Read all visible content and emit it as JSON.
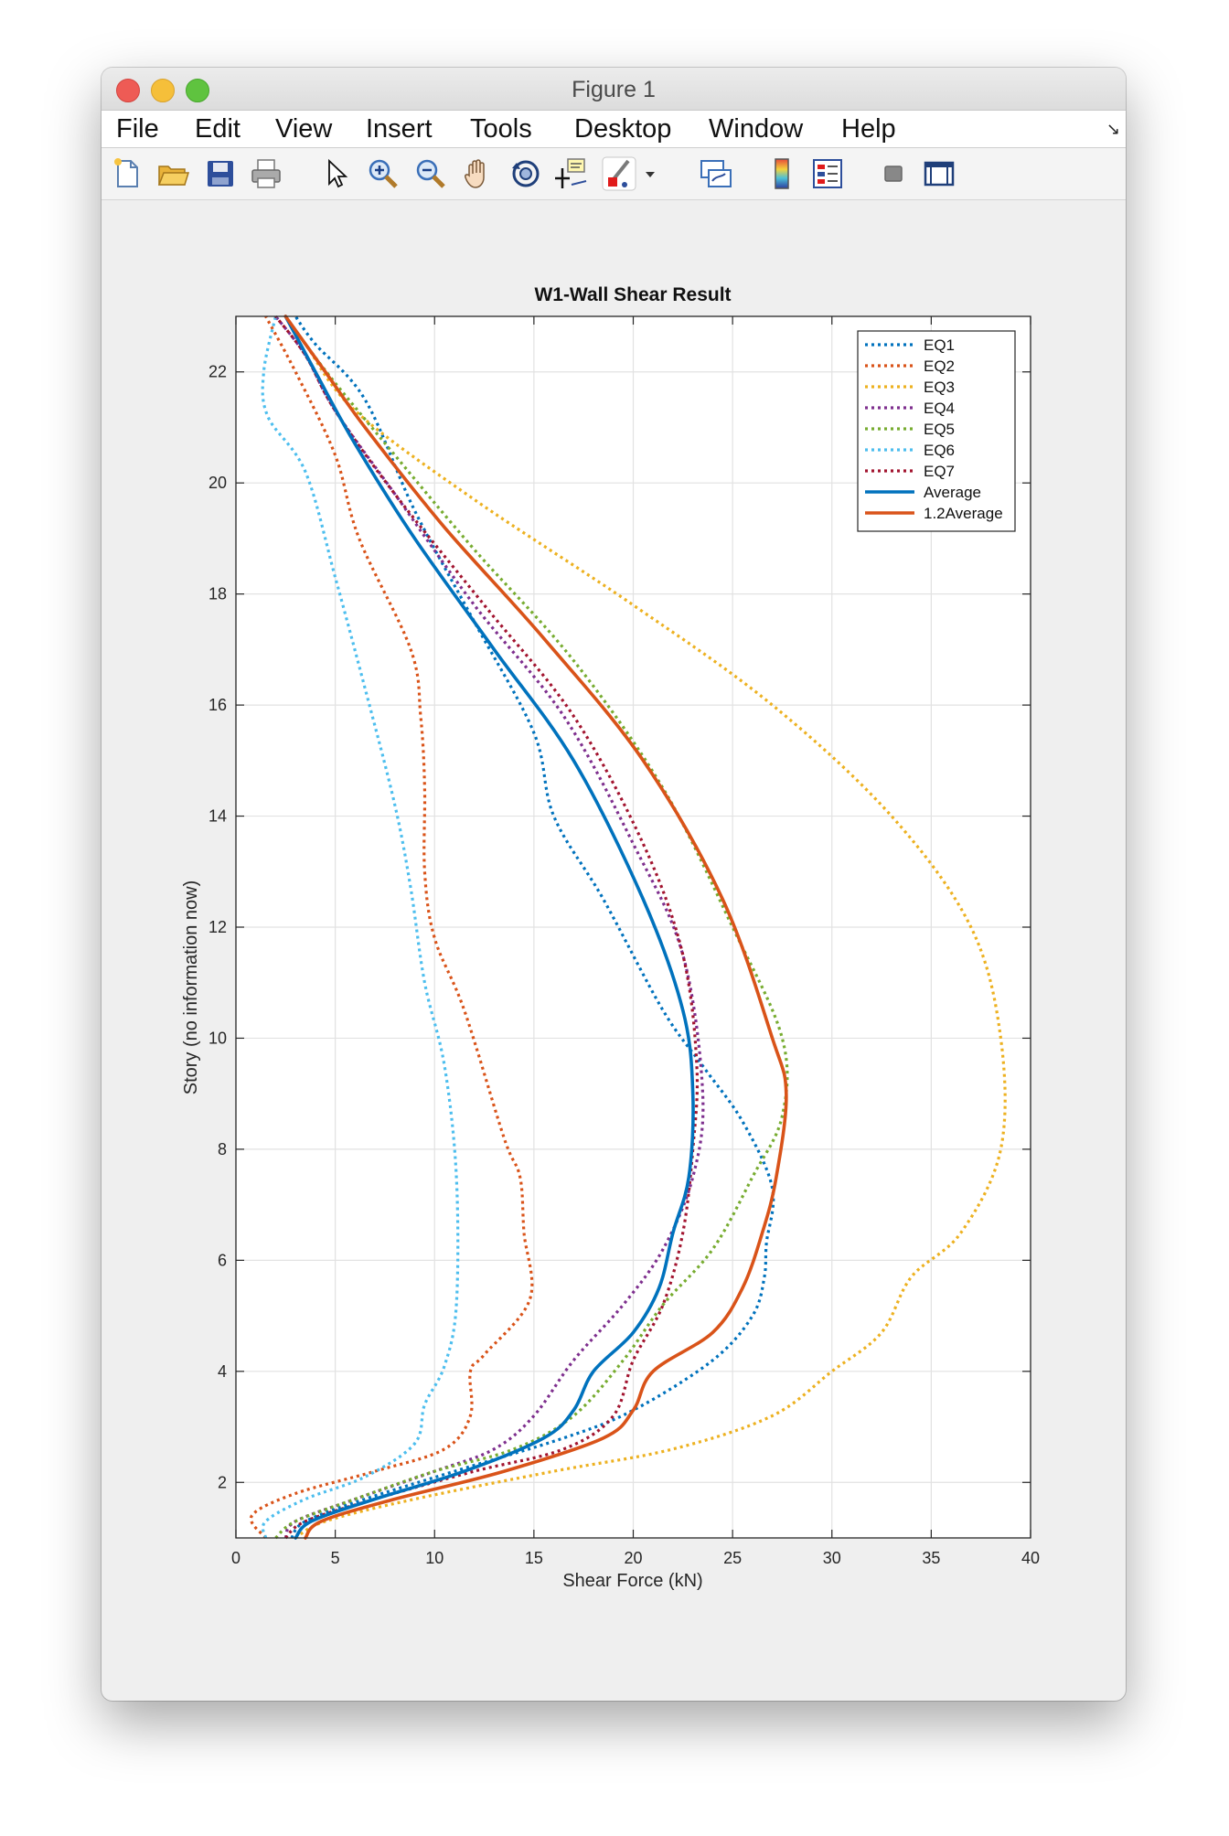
{
  "window": {
    "title": "Figure 1"
  },
  "menu": [
    "File",
    "Edit",
    "View",
    "Insert",
    "Tools",
    "Desktop",
    "Window",
    "Help"
  ],
  "toolbar": [
    "new-figure-icon",
    "open-file-icon",
    "save-icon",
    "print-icon",
    "pointer-icon",
    "zoom-in-icon",
    "zoom-out-icon",
    "pan-hand-icon",
    "rotate-3d-icon",
    "data-cursor-icon",
    "brush-icon",
    "brush-dropdown-icon",
    "link-plot-icon",
    "colorbar-icon",
    "legend-icon",
    "hide-plot-tools-icon",
    "show-plot-tools-icon"
  ],
  "chart_data": {
    "type": "line",
    "title": "W1-Wall Shear Result",
    "xlabel": "Shear Force (kN)",
    "ylabel": "Story (no information now)",
    "xlim": [
      0,
      40
    ],
    "ylim": [
      1,
      23
    ],
    "xticks": [
      0,
      5,
      10,
      15,
      20,
      25,
      30,
      35,
      40
    ],
    "yticks": [
      2,
      4,
      6,
      8,
      10,
      12,
      14,
      16,
      18,
      20,
      22
    ],
    "grid": true,
    "legend_position": "top-right",
    "series": [
      {
        "name": "EQ1",
        "color": "#0072BD",
        "style": "dotted",
        "x": [
          2.8,
          3.5,
          6.5,
          11,
          16.5,
          20,
          24,
          26,
          26.6,
          26.7,
          27,
          25.5,
          23.5,
          21.5,
          18.5,
          16,
          15,
          12,
          9,
          6.5,
          4,
          3
        ],
        "y": [
          1,
          1.3,
          1.7,
          2.2,
          2.8,
          3.3,
          4.2,
          5,
          5.7,
          6.3,
          7.3,
          8.5,
          9.5,
          10.5,
          12.5,
          14,
          15.5,
          17.5,
          19.5,
          21.5,
          22.5,
          23
        ]
      },
      {
        "name": "EQ2",
        "color": "#D95319",
        "style": "dotted",
        "x": [
          1.5,
          0.8,
          3,
          7,
          10.5,
          11.8,
          11.8,
          12.5,
          14.8,
          14.5,
          14.3,
          13.5,
          11.5,
          10,
          9.5,
          9.5,
          9.3,
          8.8,
          6.2,
          5,
          3,
          1.5
        ],
        "y": [
          1,
          1.4,
          1.8,
          2.2,
          2.6,
          3.2,
          4,
          4.3,
          5.3,
          6.5,
          7.5,
          8.2,
          10.5,
          11.8,
          13,
          14.5,
          15.8,
          17,
          19,
          20.5,
          22,
          23
        ]
      },
      {
        "name": "EQ3",
        "color": "#EDB120",
        "style": "dotted",
        "x": [
          3,
          4.5,
          9,
          16,
          22,
          27,
          30,
          32.5,
          34,
          36.5,
          38.5,
          38.5,
          37,
          33,
          27,
          20,
          12,
          6,
          3.5,
          2.5
        ],
        "y": [
          1,
          1.3,
          1.7,
          2.2,
          2.6,
          3.2,
          4,
          4.7,
          5.7,
          6.5,
          8,
          10,
          12,
          14,
          16,
          17.8,
          19.7,
          21.3,
          22.5,
          23
        ]
      },
      {
        "name": "EQ4",
        "color": "#7E2F8E",
        "style": "dotted",
        "x": [
          2.5,
          3,
          6,
          10,
          13,
          15,
          17,
          19.5,
          21.5,
          23,
          23.5,
          22.5,
          20,
          16.5,
          12,
          8,
          5,
          3.5,
          2
        ],
        "y": [
          1,
          1.3,
          1.7,
          2.2,
          2.6,
          3.2,
          4.2,
          5.2,
          6.2,
          7.5,
          9,
          11.5,
          13.5,
          15.8,
          17.8,
          19.8,
          21.3,
          22.3,
          23
        ]
      },
      {
        "name": "EQ5",
        "color": "#77AC30",
        "style": "dotted",
        "x": [
          2,
          3,
          6,
          10,
          14,
          17,
          19.5,
          21.5,
          24,
          26,
          27.5,
          27.5,
          25,
          21.5,
          17,
          12,
          8,
          5,
          3.5,
          2.5
        ],
        "y": [
          1,
          1.3,
          1.7,
          2.2,
          2.6,
          3.2,
          4.2,
          5.2,
          6.2,
          7.5,
          8.6,
          10,
          12,
          14.5,
          16.8,
          18.8,
          20.5,
          21.8,
          22.5,
          23
        ]
      },
      {
        "name": "EQ6",
        "color": "#4DBEEE",
        "style": "dotted",
        "x": [
          1.5,
          1.5,
          3.5,
          6.5,
          9,
          9.5,
          10.5,
          11.1,
          11.1,
          10.5,
          9.5,
          8.8,
          8,
          6.5,
          5,
          3.5,
          1.6,
          1.4,
          2
        ],
        "y": [
          1,
          1.3,
          1.7,
          2.1,
          2.7,
          3.4,
          4.1,
          5.2,
          7.5,
          9.5,
          11,
          12.7,
          14.2,
          16.3,
          18.3,
          20.2,
          21.2,
          22,
          23
        ]
      },
      {
        "name": "EQ7",
        "color": "#A2142F",
        "style": "dotted",
        "x": [
          2.5,
          3.5,
          7,
          12,
          16.5,
          19,
          20,
          21.5,
          22.5,
          23,
          23.2,
          22.5,
          20.5,
          17,
          12.5,
          8,
          5,
          3.5,
          2
        ],
        "y": [
          1,
          1.3,
          1.7,
          2.2,
          2.6,
          3.2,
          4.2,
          5.2,
          6.5,
          8,
          9.5,
          11.5,
          13.5,
          15.8,
          17.8,
          19.8,
          21.3,
          22.3,
          23
        ]
      },
      {
        "name": "Average",
        "color": "#0072BD",
        "style": "solid",
        "x": [
          3,
          3.8,
          7,
          11.5,
          15.5,
          17,
          18,
          20,
          21.3,
          22,
          22.8,
          23,
          22.5,
          20.5,
          17,
          13,
          9,
          6,
          4,
          2.5
        ],
        "y": [
          1,
          1.3,
          1.7,
          2.2,
          2.8,
          3.3,
          4,
          4.7,
          5.5,
          6.5,
          7.5,
          9,
          10.5,
          12.5,
          15,
          17,
          19,
          20.7,
          22,
          23
        ]
      },
      {
        "name": "1.2Average",
        "color": "#D95319",
        "style": "solid",
        "x": [
          3.5,
          4.3,
          8,
          13.5,
          18.5,
          20,
          21,
          24,
          25.5,
          26.5,
          27.2,
          27.7,
          27,
          24.5,
          20.5,
          15.5,
          10.5,
          6.5,
          4.5,
          2.5
        ],
        "y": [
          1,
          1.3,
          1.7,
          2.2,
          2.8,
          3.3,
          4,
          4.7,
          5.5,
          6.5,
          7.5,
          9,
          10,
          12.5,
          15,
          17.2,
          19.2,
          21,
          22,
          23
        ]
      }
    ]
  }
}
